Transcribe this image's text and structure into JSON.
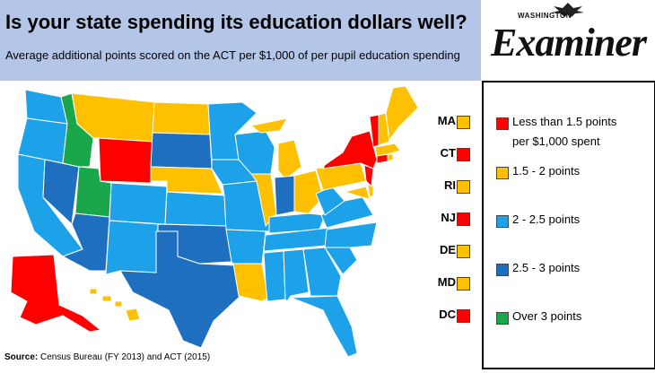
{
  "title": "Is your state spending its education dollars well?",
  "subtitle": "Average additional points scored on the ACT per $1,000 of per pupil education spending",
  "logo": {
    "small": "WASHINGTON",
    "big": "Examiner"
  },
  "colors": {
    "red": "#ff0000",
    "orange": "#ffc000",
    "light_blue": "#1da1e8",
    "dark_blue": "#1f6fc0",
    "green": "#1aa64a",
    "title_band": "#b4c6e7"
  },
  "legend": [
    {
      "label": "Less than 1.5 points per $1,000 spent",
      "line1": "Less than 1.5 points",
      "line2": "per $1,000 spent",
      "color": "#ff0000"
    },
    {
      "label": "1.5 - 2 points",
      "color": "#ffc000"
    },
    {
      "label": "2 - 2.5 points",
      "color": "#1da1e8"
    },
    {
      "label": "2.5 - 3 points",
      "color": "#1f6fc0"
    },
    {
      "label": "Over 3 points",
      "color": "#1aa64a"
    }
  ],
  "small_states": [
    {
      "abbr": "MA",
      "category": "1.5 - 2 points",
      "color": "#ffc000"
    },
    {
      "abbr": "CT",
      "category": "Less than 1.5 points",
      "color": "#ff0000"
    },
    {
      "abbr": "RI",
      "category": "1.5 - 2 points",
      "color": "#ffc000"
    },
    {
      "abbr": "NJ",
      "category": "Less than 1.5 points",
      "color": "#ff0000"
    },
    {
      "abbr": "DE",
      "category": "1.5 - 2 points",
      "color": "#ffc000"
    },
    {
      "abbr": "MD",
      "category": "1.5 - 2 points",
      "color": "#ffc000"
    },
    {
      "abbr": "DC",
      "category": "Less than 1.5 points",
      "color": "#ff0000"
    }
  ],
  "states": {
    "WA": "2 - 2.5",
    "OR": "2 - 2.5",
    "CA": "2 - 2.5",
    "NV": "2.5 - 3",
    "ID": "Over 3",
    "UT": "Over 3",
    "AZ": "2.5 - 3",
    "MT": "1.5 - 2",
    "WY": "Less than 1.5",
    "CO": "2 - 2.5",
    "NM": "2 - 2.5",
    "ND": "1.5 - 2",
    "SD": "2.5 - 3",
    "NE": "1.5 - 2",
    "KS": "2 - 2.5",
    "OK": "2.5 - 3",
    "TX": "2.5 - 3",
    "MN": "1.5 - 2",
    "IA": "2 - 2.5",
    "MO": "2 - 2.5",
    "AR": "2 - 2.5",
    "LA": "1.5 - 2",
    "WI": "2 - 2.5",
    "IL": "1.5 - 2",
    "MI": "1.5 - 2",
    "IN": "2.5 - 3",
    "OH": "1.5 - 2",
    "KY": "2 - 2.5",
    "TN": "2 - 2.5",
    "MS": "2 - 2.5",
    "AL": "2 - 2.5",
    "GA": "2 - 2.5",
    "FL": "2 - 2.5",
    "SC": "2 - 2.5",
    "NC": "2 - 2.5",
    "VA": "2 - 2.5",
    "WV": "2 - 2.5",
    "PA": "1.5 - 2",
    "NY": "Less than 1.5",
    "VT": "Less than 1.5",
    "NH": "1.5 - 2",
    "ME": "1.5 - 2",
    "AK": "Less than 1.5",
    "HI": "1.5 - 2"
  },
  "source": {
    "label": "Source:",
    "text": "Census Bureau (FY 2013) and ACT (2015)"
  }
}
